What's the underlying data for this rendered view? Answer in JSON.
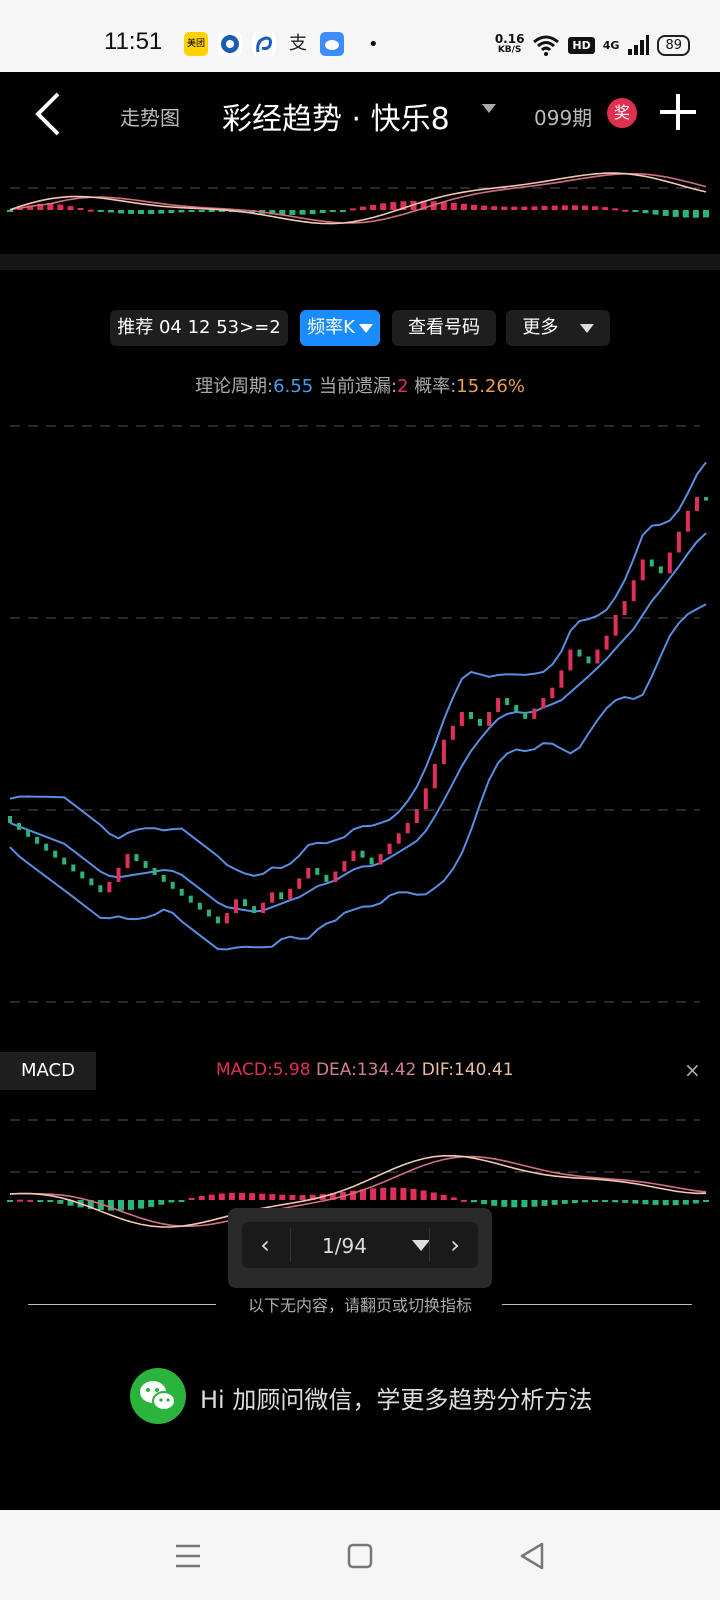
{
  "status_bar": {
    "time": "11:51",
    "apps": [
      "美团",
      "bank-icon",
      "b-icon",
      "支",
      "cloud-icon"
    ],
    "net_speed": "0.16",
    "net_unit": "KB/S",
    "hd": "HD",
    "signal": "4G",
    "battery": "89"
  },
  "header": {
    "subtitle": "走势图",
    "title": "彩经趋势 · 快乐8",
    "period": "099期",
    "prize": "奖"
  },
  "controls": {
    "recommend": "推荐 04 12 53>=2",
    "frequency": "频率K",
    "view_numbers": "查看号码",
    "more": "更多"
  },
  "info": {
    "period_label": "理论周期:",
    "period_value": "6.55",
    "miss_label": "当前遗漏:",
    "miss_value": "2",
    "prob_label": "概率:",
    "prob_value": "15.26%"
  },
  "macd": {
    "tag": "MACD",
    "macd": "MACD:5.98",
    "dea": "DEA:134.42",
    "dif": "DIF:140.41",
    "close": "×"
  },
  "pager": {
    "text": "1/94",
    "prev": "‹",
    "next": "›"
  },
  "end_note": "以下无内容，请翻页或切换指标",
  "promo": "Hi  加顾问微信，学更多趋势分析方法",
  "colors": {
    "up": "#e0305a",
    "down": "#2bb57a",
    "band": "#5a8ee0",
    "accent": "#1a8cff",
    "orange": "#e8a050"
  },
  "chart_data": [
    {
      "type": "candlestick",
      "title": "",
      "x_count": 78,
      "close": [
        0.88,
        0.86,
        0.84,
        0.82,
        0.8,
        0.78,
        0.76,
        0.74,
        0.72,
        0.7,
        0.68,
        0.71,
        0.75,
        0.79,
        0.77,
        0.75,
        0.73,
        0.71,
        0.69,
        0.67,
        0.65,
        0.63,
        0.61,
        0.59,
        0.62,
        0.66,
        0.64,
        0.62,
        0.65,
        0.68,
        0.66,
        0.69,
        0.72,
        0.75,
        0.73,
        0.71,
        0.74,
        0.77,
        0.8,
        0.78,
        0.76,
        0.79,
        0.82,
        0.85,
        0.88,
        0.92,
        0.98,
        1.05,
        1.12,
        1.16,
        1.2,
        1.18,
        1.16,
        1.2,
        1.24,
        1.22,
        1.2,
        1.18,
        1.21,
        1.24,
        1.27,
        1.32,
        1.38,
        1.36,
        1.34,
        1.38,
        1.42,
        1.48,
        1.52,
        1.58,
        1.64,
        1.62,
        1.6,
        1.66,
        1.72,
        1.78,
        1.82,
        1.81
      ],
      "bands": [
        "upper",
        "middle",
        "lower"
      ]
    },
    {
      "type": "line",
      "title": "MACD",
      "series": [
        {
          "name": "DIF"
        },
        {
          "name": "DEA"
        },
        {
          "name": "MACD"
        }
      ]
    }
  ]
}
